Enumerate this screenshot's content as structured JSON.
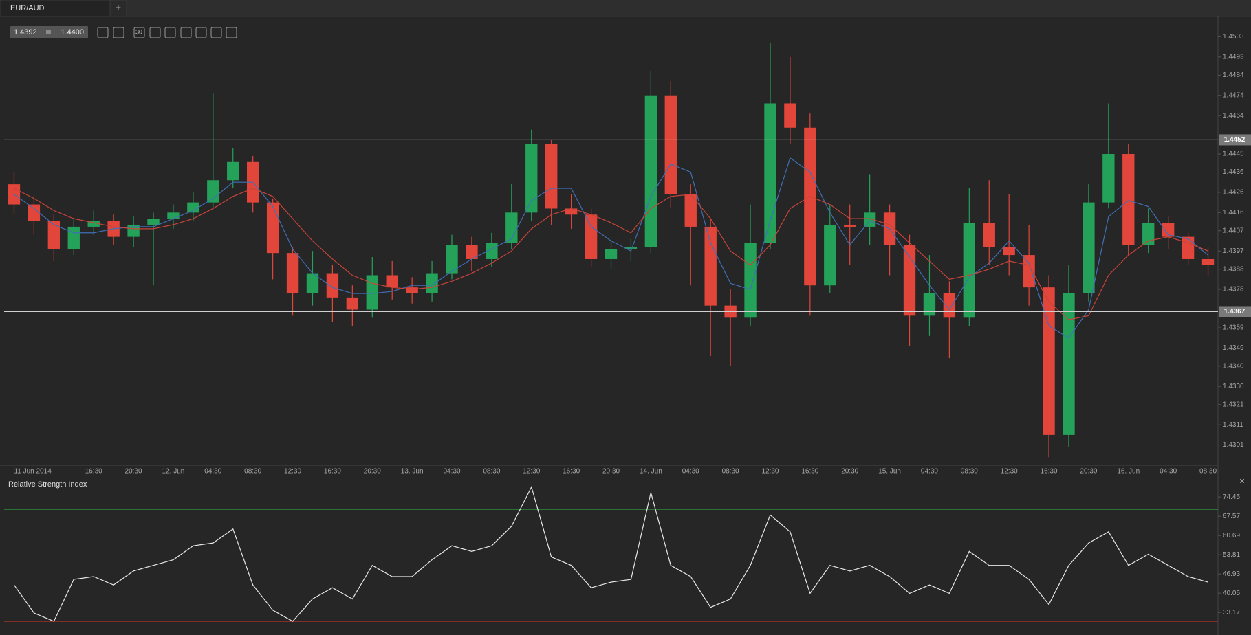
{
  "tab": {
    "title": "EUR/AUD",
    "add": "+"
  },
  "quote": {
    "bid": "1.4392",
    "ask": "1.4400"
  },
  "toolbar": {
    "period": "30"
  },
  "close": "×",
  "chart_data": [
    {
      "type": "candlestick",
      "categories": [
        "11 Jun 2014",
        null,
        null,
        null,
        "16:30",
        null,
        "20:30",
        null,
        "12. Jun",
        null,
        "04:30",
        null,
        "08:30",
        null,
        "12:30",
        null,
        "16:30",
        null,
        "20:30",
        null,
        "13. Jun",
        null,
        "04:30",
        null,
        "08:30",
        null,
        "12:30",
        null,
        "16:30",
        null,
        "20:30",
        null,
        "14. Jun",
        null,
        "04:30",
        null,
        "08:30",
        null,
        "12:30",
        null,
        "16:30",
        null,
        "20:30",
        null,
        "15. Jun",
        null,
        "04:30",
        null,
        "08:30",
        null,
        "12:30",
        null,
        "16:30",
        null,
        "20:30",
        null,
        "16. Jun",
        null,
        "04:30",
        null,
        "08:30"
      ],
      "open": [
        1.443,
        1.442,
        1.4412,
        1.4398,
        1.4409,
        1.4412,
        1.4404,
        1.441,
        1.4413,
        1.4416,
        1.4421,
        1.4432,
        1.4441,
        1.4421,
        1.4396,
        1.4376,
        1.4386,
        1.4374,
        1.4368,
        1.4385,
        1.4379,
        1.4376,
        1.4386,
        1.44,
        1.4393,
        1.4401,
        1.4416,
        1.445,
        1.4418,
        1.4415,
        1.4393,
        1.4398,
        1.4399,
        1.4474,
        1.4425,
        1.4409,
        1.437,
        1.4364,
        1.4401,
        1.447,
        1.4458,
        1.438,
        1.441,
        1.4409,
        1.4416,
        1.44,
        1.4365,
        1.4376,
        1.4364,
        1.4411,
        1.4399,
        1.4395,
        1.4379,
        1.4306,
        1.4376,
        1.4421,
        1.4445,
        1.44,
        1.4411,
        1.4404,
        1.4393
      ],
      "high": [
        1.4436,
        1.4424,
        1.4415,
        1.4413,
        1.4417,
        1.4415,
        1.4414,
        1.4416,
        1.442,
        1.4426,
        1.4475,
        1.4448,
        1.4444,
        1.4423,
        1.4399,
        1.4397,
        1.439,
        1.438,
        1.4394,
        1.4392,
        1.4384,
        1.4392,
        1.4405,
        1.4404,
        1.4406,
        1.443,
        1.4457,
        1.4452,
        1.4425,
        1.4418,
        1.4402,
        1.4403,
        1.4486,
        1.4481,
        1.443,
        1.4413,
        1.4378,
        1.442,
        1.45,
        1.4493,
        1.4465,
        1.442,
        1.442,
        1.4435,
        1.442,
        1.4405,
        1.4395,
        1.4382,
        1.4428,
        1.4432,
        1.4425,
        1.441,
        1.4385,
        1.439,
        1.443,
        1.447,
        1.445,
        1.4418,
        1.4414,
        1.4406,
        1.4399
      ],
      "low": [
        1.4415,
        1.4405,
        1.4392,
        1.4395,
        1.4405,
        1.44,
        1.4399,
        1.438,
        1.4408,
        1.4412,
        1.4418,
        1.4428,
        1.4416,
        1.4383,
        1.4365,
        1.437,
        1.4362,
        1.436,
        1.4364,
        1.4373,
        1.4371,
        1.4372,
        1.4383,
        1.4387,
        1.4389,
        1.4398,
        1.4412,
        1.441,
        1.4408,
        1.4389,
        1.4388,
        1.4392,
        1.4396,
        1.4418,
        1.438,
        1.4345,
        1.434,
        1.436,
        1.4398,
        1.445,
        1.4365,
        1.4376,
        1.439,
        1.44,
        1.4385,
        1.435,
        1.4355,
        1.4344,
        1.436,
        1.439,
        1.4385,
        1.437,
        1.4295,
        1.43,
        1.4372,
        1.4418,
        1.4395,
        1.4396,
        1.4398,
        1.439,
        1.4385
      ],
      "close": [
        1.442,
        1.4412,
        1.4398,
        1.4409,
        1.4412,
        1.4404,
        1.441,
        1.4413,
        1.4416,
        1.4421,
        1.4432,
        1.4441,
        1.4421,
        1.4396,
        1.4376,
        1.4386,
        1.4374,
        1.4368,
        1.4385,
        1.4379,
        1.4376,
        1.4386,
        1.44,
        1.4393,
        1.4401,
        1.4416,
        1.445,
        1.4418,
        1.4415,
        1.4393,
        1.4398,
        1.4399,
        1.4474,
        1.4425,
        1.4409,
        1.437,
        1.4364,
        1.4401,
        1.447,
        1.4458,
        1.438,
        1.441,
        1.4409,
        1.4416,
        1.44,
        1.4365,
        1.4376,
        1.4364,
        1.4411,
        1.4399,
        1.4395,
        1.4379,
        1.4306,
        1.4376,
        1.4421,
        1.4445,
        1.44,
        1.4411,
        1.4404,
        1.4393,
        1.439
      ],
      "up_color": "#25a25a",
      "down_color": "#e2463b",
      "series": [
        {
          "color": "#3f6fb5",
          "values": [
            1.4425,
            1.4418,
            1.441,
            1.4406,
            1.4406,
            1.4408,
            1.4409,
            1.4409,
            1.4413,
            1.4417,
            1.4423,
            1.4431,
            1.4431,
            1.4419,
            1.4398,
            1.4386,
            1.4379,
            1.4376,
            1.4376,
            1.4377,
            1.438,
            1.438,
            1.4387,
            1.4393,
            1.4398,
            1.4403,
            1.4422,
            1.4428,
            1.4428,
            1.4409,
            1.4402,
            1.4397,
            1.4424,
            1.444,
            1.4436,
            1.4401,
            1.4381,
            1.4378,
            1.4412,
            1.4443,
            1.4436,
            1.4416,
            1.44,
            1.4412,
            1.4408,
            1.4394,
            1.438,
            1.4368,
            1.4384,
            1.4391,
            1.4402,
            1.4391,
            1.436,
            1.4354,
            1.4368,
            1.4414,
            1.4422,
            1.4419,
            1.4405,
            1.4403,
            1.4395
          ]
        },
        {
          "color": "#c8443a",
          "values": [
            1.4428,
            1.4423,
            1.4417,
            1.4413,
            1.4411,
            1.4409,
            1.4408,
            1.4408,
            1.441,
            1.4413,
            1.4418,
            1.4424,
            1.4428,
            1.4424,
            1.4413,
            1.4402,
            1.4393,
            1.4385,
            1.4381,
            1.4379,
            1.4378,
            1.4379,
            1.4382,
            1.4386,
            1.4391,
            1.4397,
            1.4408,
            1.4415,
            1.4418,
            1.4415,
            1.4411,
            1.4406,
            1.4418,
            1.4424,
            1.4425,
            1.4413,
            1.4397,
            1.439,
            1.44,
            1.4418,
            1.4424,
            1.442,
            1.4413,
            1.4413,
            1.441,
            1.4401,
            1.4392,
            1.4383,
            1.4385,
            1.4388,
            1.4392,
            1.439,
            1.4372,
            1.4363,
            1.4365,
            1.4385,
            1.4395,
            1.4402,
            1.4404,
            1.4401,
            1.4397
          ]
        }
      ],
      "hlines": [
        1.4452,
        1.4367
      ],
      "hline_color": "#d0d0d0",
      "ylim": [
        1.4291,
        1.4513
      ],
      "yticks": [
        1.4301,
        1.4311,
        1.4321,
        {
          "value": 1.433,
          "label": "1.4330"
        },
        {
          "value": 1.434,
          "label": "1.4340"
        },
        1.4349,
        1.4359,
        1.4378,
        1.4388,
        1.4397,
        1.4407,
        1.4416,
        1.4426,
        1.4436,
        1.4445,
        1.4464,
        1.4474,
        1.4484,
        1.4493,
        1.4503
      ]
    },
    {
      "type": "line",
      "title": "Relative Strength Index",
      "color": "#e8e8e8",
      "values": [
        43,
        33,
        30,
        45,
        46,
        43,
        48,
        50,
        52,
        57,
        58,
        63,
        43,
        34,
        30,
        38,
        42,
        38,
        50,
        46,
        46,
        52,
        57,
        55,
        57,
        64,
        78,
        53,
        50,
        42,
        44,
        45,
        76,
        50,
        46,
        35,
        38,
        50,
        68,
        62,
        40,
        50,
        48,
        50,
        46,
        40,
        43,
        40,
        55,
        50,
        50,
        45,
        36,
        50,
        58,
        62,
        50,
        54,
        50,
        46,
        44
      ],
      "levels": [
        {
          "value": 70,
          "color": "#2f8a3a"
        },
        {
          "value": 30,
          "color": "#b8332a"
        }
      ],
      "ylim": [
        26.58,
        81.62
      ],
      "yticks": [
        33.17,
        40.05,
        46.93,
        53.81,
        60.69,
        67.57,
        74.45
      ]
    }
  ]
}
